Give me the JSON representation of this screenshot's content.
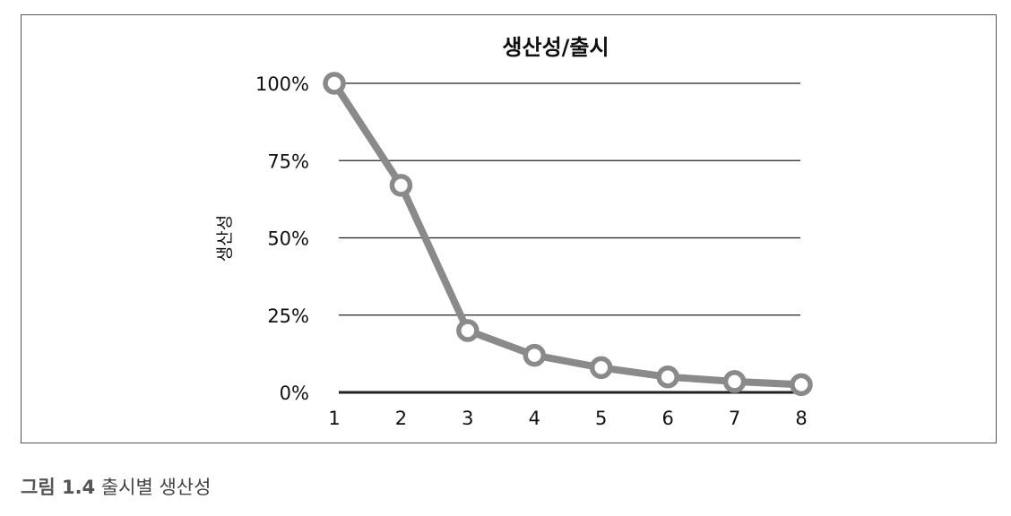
{
  "chart_data": {
    "type": "line",
    "title": "생산성/출시",
    "xlabel": "",
    "ylabel": "생산성",
    "x": [
      1,
      2,
      3,
      4,
      5,
      6,
      7,
      8
    ],
    "y_ticks": [
      "0%",
      "25%",
      "50%",
      "75%",
      "100%"
    ],
    "ylim": [
      0,
      100
    ],
    "series": [
      {
        "values": [
          100,
          67,
          20,
          12,
          8,
          5,
          3.5,
          2.5
        ]
      }
    ],
    "grid": true,
    "legend": "none",
    "line_color": "#8a8a8a",
    "gridline_color": "#222222"
  },
  "caption": {
    "label": "그림 1.4",
    "text": "출시별 생산성"
  }
}
